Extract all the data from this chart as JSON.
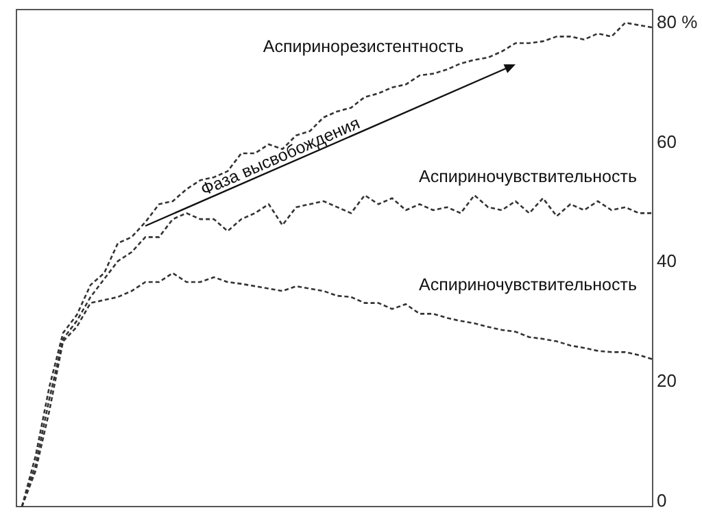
{
  "chart_data": {
    "type": "line",
    "categories": [
      null,
      null,
      null,
      null,
      null,
      null,
      null,
      null,
      null,
      null,
      null,
      null,
      null,
      null,
      null,
      null,
      null,
      null,
      null,
      null,
      null,
      null,
      null,
      null,
      null,
      null,
      null,
      null,
      null,
      null,
      null,
      null,
      null,
      null,
      null,
      null,
      null,
      null,
      null,
      null,
      null,
      null,
      null,
      null,
      null,
      null,
      null
    ],
    "series": [
      {
        "color": "#333333",
        "values": [
          -1,
          7.5,
          19,
          28,
          31,
          36,
          38,
          43,
          44,
          46.5,
          49.5,
          50,
          52,
          53.5,
          54,
          55,
          58,
          58,
          59.5,
          58.7,
          61,
          61.7,
          64,
          65,
          65.6,
          67.4,
          68,
          69,
          69.5,
          71,
          71.3,
          72,
          73,
          73.6,
          74,
          75,
          76.4,
          76.4,
          76.7,
          77.5,
          77.5,
          77,
          78,
          77.5,
          79.8,
          79.4,
          79
        ]
      },
      {
        "color": "#333333",
        "values": [
          -1,
          6,
          17,
          27,
          30,
          34,
          37,
          40,
          41.5,
          44,
          44,
          47,
          48,
          47,
          47,
          45,
          47,
          48,
          49.5,
          46,
          49,
          49.5,
          50,
          49,
          48,
          51,
          49.5,
          50.5,
          48.5,
          49.5,
          48.5,
          49,
          48,
          51,
          49,
          48.5,
          50,
          48,
          50.5,
          47.5,
          49.5,
          48.5,
          50,
          48.5,
          49,
          48,
          48
        ]
      },
      {
        "color": "#333333",
        "values": [
          -1,
          5,
          15,
          26.6,
          29,
          33,
          33.5,
          34,
          35,
          36.5,
          36.5,
          38,
          36.5,
          36.5,
          37.3,
          36.5,
          36.2,
          35.8,
          35.4,
          35,
          35.8,
          35.4,
          35,
          34.2,
          34,
          33,
          33,
          32,
          32.8,
          31.2,
          31.2,
          30.5,
          30,
          29.6,
          29,
          28.5,
          28.2,
          27.3,
          27,
          26.6,
          25.9,
          25.5,
          25,
          24.8,
          24.8,
          24.3,
          23.6
        ]
      }
    ],
    "ylim": [
      -1,
      82
    ],
    "yticks": [
      0,
      20,
      40,
      60,
      {
        "value": 80,
        "label": "80 %"
      }
    ],
    "tick_labels": "y",
    "grid": false,
    "line_style": "dashed",
    "annotations": [
      "Аспиринорезистентность",
      "Аспириночувствительность",
      "Аспириночувствительность",
      "Фаза высвобождения"
    ]
  }
}
